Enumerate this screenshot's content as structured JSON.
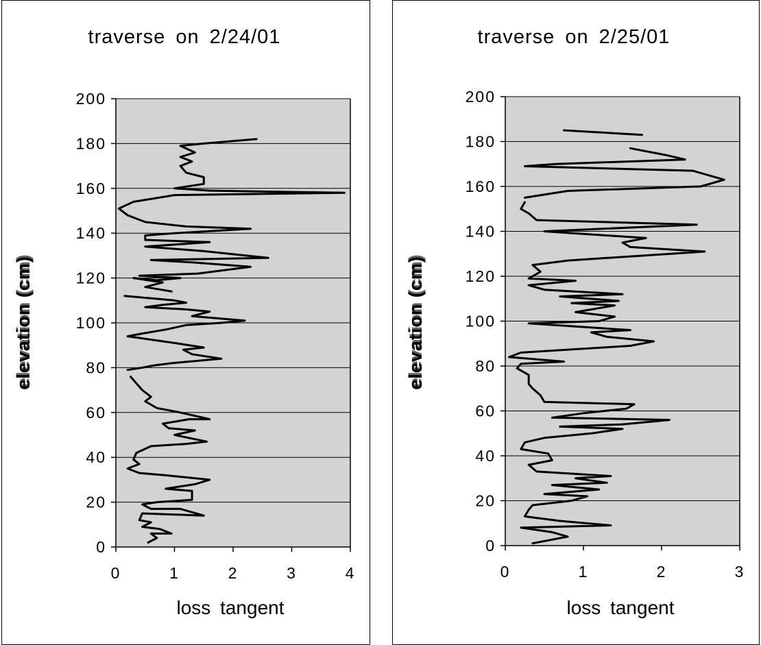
{
  "chart_data": [
    {
      "type": "line",
      "title": "traverse on 2/24/01",
      "xlabel": "loss tangent",
      "ylabel": "elevation (cm)",
      "xlim": [
        0,
        4
      ],
      "ylim": [
        0,
        200
      ],
      "xticks": [
        "0",
        "1",
        "2",
        "3",
        "4"
      ],
      "yticks": [
        "0",
        "20",
        "40",
        "60",
        "80",
        "100",
        "120",
        "140",
        "160",
        "180",
        "200"
      ],
      "grid": "horizontal",
      "segments": [
        [
          [
            0.55,
            2
          ],
          [
            0.7,
            4
          ],
          [
            0.6,
            6
          ],
          [
            0.95,
            6
          ],
          [
            0.75,
            8
          ],
          [
            0.45,
            9
          ],
          [
            0.6,
            11
          ],
          [
            0.4,
            12
          ],
          [
            0.45,
            15
          ],
          [
            1.5,
            14
          ],
          [
            1.1,
            17
          ],
          [
            0.6,
            17
          ],
          [
            0.45,
            19
          ],
          [
            0.7,
            20
          ],
          [
            1.3,
            21
          ],
          [
            1.3,
            25
          ],
          [
            0.85,
            26
          ],
          [
            1.35,
            28
          ],
          [
            1.6,
            30
          ],
          [
            0.85,
            32
          ],
          [
            0.4,
            33
          ],
          [
            0.2,
            35
          ],
          [
            0.4,
            37
          ],
          [
            0.3,
            39
          ],
          [
            0.35,
            42
          ],
          [
            0.6,
            45
          ],
          [
            1.2,
            46
          ],
          [
            1.55,
            47
          ],
          [
            1.0,
            50
          ],
          [
            1.35,
            52
          ],
          [
            0.9,
            53
          ],
          [
            0.8,
            55
          ],
          [
            1.25,
            57
          ],
          [
            1.6,
            57
          ],
          [
            1.1,
            60
          ],
          [
            0.7,
            62
          ],
          [
            0.5,
            65
          ],
          [
            0.6,
            67
          ],
          [
            0.45,
            70
          ],
          [
            0.35,
            73
          ],
          [
            0.25,
            76
          ]
        ],
        [
          [
            0.2,
            79
          ],
          [
            0.45,
            80
          ],
          [
            0.65,
            81
          ],
          [
            0.95,
            82
          ],
          [
            1.8,
            84
          ],
          [
            1.3,
            86
          ],
          [
            1.15,
            88
          ],
          [
            1.5,
            89
          ],
          [
            1.0,
            91
          ],
          [
            0.2,
            94
          ],
          [
            0.4,
            95
          ],
          [
            0.85,
            97
          ],
          [
            1.2,
            99
          ],
          [
            1.8,
            100
          ],
          [
            2.2,
            101
          ],
          [
            1.3,
            103
          ],
          [
            1.6,
            105
          ],
          [
            1.2,
            106
          ],
          [
            0.5,
            107
          ],
          [
            0.8,
            108
          ],
          [
            1.2,
            109
          ],
          [
            1.0,
            110
          ],
          [
            0.15,
            112
          ]
        ],
        [
          [
            0.95,
            114
          ],
          [
            0.5,
            116
          ],
          [
            0.8,
            118
          ],
          [
            0.3,
            120
          ],
          [
            0.7,
            119
          ],
          [
            1.1,
            120
          ],
          [
            0.4,
            121
          ],
          [
            1.4,
            122
          ],
          [
            2.3,
            125
          ],
          [
            1.3,
            127
          ],
          [
            0.6,
            128
          ],
          [
            2.6,
            129
          ],
          [
            1.5,
            132
          ],
          [
            0.5,
            134
          ],
          [
            1.6,
            136
          ],
          [
            0.5,
            137
          ],
          [
            0.5,
            139
          ],
          [
            1.0,
            140
          ],
          [
            2.3,
            142
          ],
          [
            1.2,
            143
          ],
          [
            0.5,
            145
          ],
          [
            0.2,
            148
          ],
          [
            0.05,
            151
          ],
          [
            0.3,
            154
          ],
          [
            1.0,
            157
          ],
          [
            3.9,
            158
          ],
          [
            1.6,
            159
          ],
          [
            1.0,
            160
          ],
          [
            1.5,
            162
          ],
          [
            1.5,
            165
          ],
          [
            1.2,
            167
          ],
          [
            1.1,
            170
          ],
          [
            1.3,
            172
          ],
          [
            1.1,
            174
          ],
          [
            1.35,
            176
          ],
          [
            1.1,
            179
          ],
          [
            1.5,
            180
          ],
          [
            2.4,
            182
          ]
        ]
      ]
    },
    {
      "type": "line",
      "title": "traverse on 2/25/01",
      "xlabel": "loss tangent",
      "ylabel": "elevation (cm)",
      "xlim": [
        0,
        3
      ],
      "ylim": [
        0,
        200
      ],
      "xticks": [
        "0",
        "1",
        "2",
        "3"
      ],
      "yticks": [
        "0",
        "20",
        "40",
        "60",
        "80",
        "100",
        "120",
        "140",
        "160",
        "180",
        "200"
      ],
      "grid": "horizontal",
      "segments": [
        [
          [
            0.35,
            1
          ],
          [
            0.8,
            4
          ],
          [
            0.6,
            6
          ],
          [
            0.2,
            8
          ],
          [
            1.35,
            9
          ],
          [
            0.7,
            11
          ],
          [
            0.25,
            13
          ],
          [
            0.3,
            16
          ],
          [
            0.35,
            18
          ],
          [
            0.85,
            20
          ],
          [
            1.05,
            22
          ],
          [
            0.5,
            23
          ],
          [
            1.2,
            25
          ],
          [
            0.6,
            27
          ],
          [
            1.3,
            28
          ],
          [
            0.9,
            30
          ],
          [
            1.35,
            31
          ],
          [
            0.4,
            33
          ],
          [
            0.3,
            36
          ],
          [
            0.6,
            38
          ],
          [
            0.55,
            41
          ],
          [
            0.2,
            43
          ],
          [
            0.25,
            46
          ],
          [
            0.5,
            48
          ],
          [
            1.1,
            50
          ],
          [
            1.5,
            52
          ],
          [
            0.7,
            53
          ],
          [
            1.5,
            54
          ],
          [
            2.1,
            56
          ],
          [
            0.6,
            57
          ],
          [
            1.0,
            59
          ],
          [
            1.55,
            61
          ],
          [
            1.65,
            63
          ],
          [
            0.5,
            64
          ],
          [
            0.45,
            67
          ],
          [
            0.35,
            70
          ],
          [
            0.3,
            72
          ],
          [
            0.3,
            76
          ],
          [
            0.15,
            79
          ],
          [
            0.2,
            81
          ],
          [
            0.75,
            82
          ],
          [
            0.05,
            84
          ],
          [
            0.2,
            86
          ],
          [
            1.6,
            89
          ],
          [
            1.9,
            91
          ],
          [
            1.3,
            93
          ],
          [
            1.1,
            95
          ],
          [
            1.6,
            96
          ],
          [
            0.3,
            99
          ],
          [
            1.2,
            100
          ],
          [
            1.4,
            102
          ],
          [
            0.9,
            104
          ],
          [
            1.4,
            107
          ],
          [
            0.85,
            108
          ],
          [
            1.45,
            109
          ],
          [
            0.7,
            111
          ],
          [
            1.5,
            112
          ],
          [
            0.5,
            114
          ],
          [
            0.3,
            116
          ],
          [
            0.9,
            118
          ],
          [
            0.3,
            119
          ],
          [
            0.45,
            122
          ],
          [
            0.35,
            125
          ],
          [
            0.8,
            127
          ],
          [
            2.55,
            131
          ],
          [
            1.6,
            133
          ],
          [
            1.5,
            135
          ],
          [
            1.8,
            137
          ],
          [
            0.5,
            140
          ],
          [
            2.45,
            143
          ],
          [
            0.4,
            145
          ],
          [
            0.3,
            148
          ],
          [
            0.2,
            150
          ],
          [
            0.25,
            153
          ]
        ],
        [
          [
            0.25,
            155
          ],
          [
            0.8,
            158
          ],
          [
            2.5,
            160
          ],
          [
            2.8,
            163
          ],
          [
            2.4,
            167
          ],
          [
            0.25,
            169
          ],
          [
            0.65,
            170
          ],
          [
            2.3,
            172
          ],
          [
            2.05,
            174
          ],
          [
            1.6,
            177
          ]
        ],
        [
          [
            0.75,
            185
          ],
          [
            1.75,
            183
          ]
        ]
      ]
    }
  ]
}
